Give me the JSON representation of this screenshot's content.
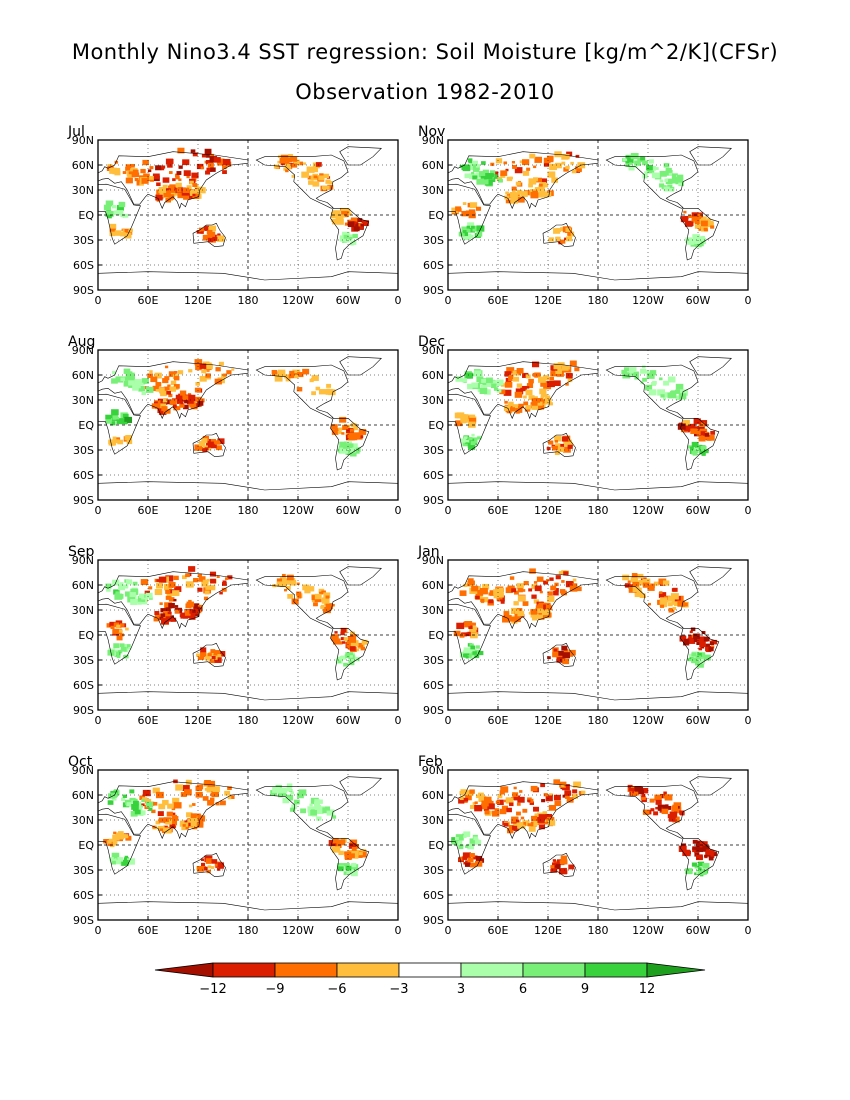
{
  "title": "Monthly Nino3.4 SST regression: Soil Moisture [kg/m^2/K](CFSr)",
  "subtitle": "Observation 1982-2010",
  "chart_data": {
    "type": "heatmap",
    "variable": "Soil Moisture",
    "units": "kg/m^2/K",
    "dataset": "CFSr",
    "period": "1982-2010",
    "panels": [
      {
        "label": "Jul",
        "pattern": {
          "n_asia": -10,
          "s_asia": -7,
          "australia": -8,
          "europe": -6,
          "n_america": -6,
          "s_america_n": -4,
          "s_america_c": -11,
          "s_america_s": 4,
          "africa_c": 8,
          "africa_s": -4
        }
      },
      {
        "label": "Aug",
        "pattern": {
          "n_asia": -6,
          "s_asia": -9,
          "australia": -8,
          "europe": 5,
          "n_america": -4,
          "s_america_n": -5,
          "s_america_c": -9,
          "s_america_s": 6,
          "africa_c": 9,
          "africa_s": -4
        }
      },
      {
        "label": "Sep",
        "pattern": {
          "n_asia": -8,
          "s_asia": -10,
          "australia": -7,
          "europe": 6,
          "n_america": -5,
          "s_america_n": -9,
          "s_america_c": -6,
          "s_america_s": 5,
          "africa_c": -7,
          "africa_s": 6
        }
      },
      {
        "label": "Oct",
        "pattern": {
          "n_asia": -6,
          "s_asia": -7,
          "australia": -8,
          "europe": 7,
          "n_america": 5,
          "s_america_n": -8,
          "s_america_c": -6,
          "s_america_s": 7,
          "africa_c": -6,
          "africa_s": 7
        }
      },
      {
        "label": "Nov",
        "pattern": {
          "n_asia": -6,
          "s_asia": -5,
          "australia": -6,
          "europe": 8,
          "n_america": 6,
          "s_america_n": -7,
          "s_america_c": -6,
          "s_america_s": 6,
          "africa_c": -5,
          "africa_s": 8
        }
      },
      {
        "label": "Dec",
        "pattern": {
          "n_asia": -7,
          "s_asia": -6,
          "australia": -8,
          "europe": 6,
          "n_america": 5,
          "s_america_n": -9,
          "s_america_c": -9,
          "s_america_s": 8,
          "africa_c": -5,
          "africa_s": 8
        }
      },
      {
        "label": "Jan",
        "pattern": {
          "n_asia": -8,
          "s_asia": -6,
          "australia": -10,
          "europe": -6,
          "n_america": -7,
          "s_america_n": -12,
          "s_america_c": -11,
          "s_america_s": 7,
          "africa_c": -8,
          "africa_s": 8
        }
      },
      {
        "label": "Feb",
        "pattern": {
          "n_asia": -9,
          "s_asia": -7,
          "australia": -10,
          "europe": -7,
          "n_america": -10,
          "s_america_n": -12,
          "s_america_c": -11,
          "s_america_s": 8,
          "africa_c": 7,
          "africa_s": -10
        }
      }
    ],
    "x_ticks": [
      "0",
      "60E",
      "120E",
      "180",
      "120W",
      "60W",
      "0"
    ],
    "y_ticks": [
      "90N",
      "60N",
      "30N",
      "EQ",
      "30S",
      "60S",
      "90S"
    ],
    "xlim": [
      0,
      360
    ],
    "ylim": [
      -90,
      90
    ],
    "grid": "dashed lines at 180 and EQ, dotted at other ticks",
    "colorbar": {
      "levels": [
        "-12",
        "-9",
        "-6",
        "-3",
        "3",
        "6",
        "9",
        "12"
      ],
      "colors": [
        "#a50f00",
        "#dc1e00",
        "#ff6e00",
        "#ffbe3c",
        "#ffffff",
        "#aaffaa",
        "#78f078",
        "#37d23c",
        "#1ea01e"
      ]
    }
  }
}
